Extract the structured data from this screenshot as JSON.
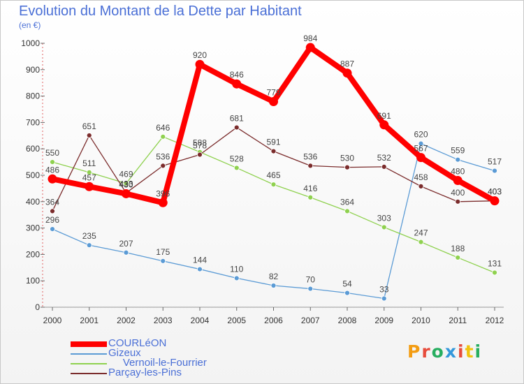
{
  "title": "Evolution du Montant de la Dette par Habitant",
  "subtitle": "(en €)",
  "brand": {
    "text": "Proxiti",
    "letter_colors": [
      "#f39c12",
      "#e74c3c",
      "#27ae60",
      "#3498db",
      "#e74c3c",
      "#f1c40f",
      "#27ae60"
    ]
  },
  "chart_data": {
    "type": "line",
    "title": "Evolution du Montant de la Dette par Habitant",
    "subtitle": "(en €)",
    "xlabel": "",
    "ylabel": "",
    "x": [
      "2000",
      "2001",
      "2002",
      "2003",
      "2004",
      "2005",
      "2006",
      "2007",
      "2008",
      "2009",
      "2010",
      "2011",
      "2012"
    ],
    "ylim": [
      0,
      1000
    ],
    "yticks": [
      0,
      100,
      200,
      300,
      400,
      500,
      600,
      700,
      800,
      900,
      1000
    ],
    "grid": false,
    "legend_position": "bottom-left",
    "series": [
      {
        "name": "COURLéON",
        "color": "#ff0000",
        "values": [
          486,
          457,
          430,
          396,
          920,
          846,
          779,
          984,
          887,
          691,
          567,
          480,
          403
        ]
      },
      {
        "name": "Gizeux",
        "color": "#5b9bd5",
        "values": [
          296,
          235,
          207,
          175,
          144,
          110,
          82,
          70,
          54,
          33,
          620,
          559,
          517
        ]
      },
      {
        "name": "     Vernoil-le-Fourrier",
        "color": "#8fd14f",
        "values": [
          550,
          511,
          469,
          646,
          588,
          528,
          465,
          416,
          364,
          303,
          247,
          188,
          131
        ]
      },
      {
        "name": "Parçay-les-Pins",
        "color": "#7b2c2c",
        "values": [
          364,
          651,
          433,
          536,
          578,
          681,
          591,
          536,
          530,
          532,
          458,
          400,
          403
        ]
      }
    ]
  }
}
